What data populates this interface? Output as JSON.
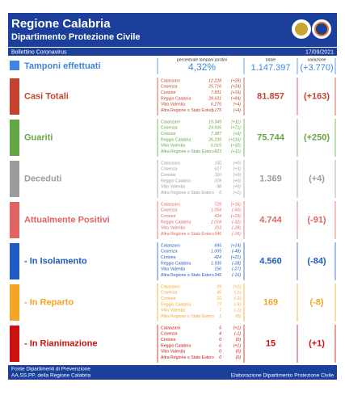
{
  "header": {
    "title": "Regione Calabria",
    "subtitle": "Dipartimento Protezione Civile",
    "bulletin": "Bollettino Coronavirus",
    "date": "17/09/2021"
  },
  "tamponi": {
    "label": "Tamponi effettuati",
    "pct_label": "percentuale tamponi positivi",
    "pct": "4,32%",
    "total_label": "totale",
    "total": "1.147.397",
    "var_label": "variazione",
    "variation": "(+3.770)",
    "color": "#3d85e0"
  },
  "sections": [
    {
      "label": "Casi Totali",
      "color": "#c5432e",
      "total": "81.857",
      "change": "(+163)",
      "rows": [
        [
          "Catanzaro",
          "12.228",
          "(+28)"
        ],
        [
          "Cosenza",
          "25.716",
          "(+24)"
        ],
        [
          "Crotone",
          "7.831",
          "(+19)"
        ],
        [
          "Reggio Calabria",
          "28.631",
          "(+84)"
        ],
        [
          "Vibo Valentia",
          "6.276",
          "(+4)"
        ],
        [
          "Altra Regione o Stato Estero",
          "1.175",
          "(+4)"
        ]
      ]
    },
    {
      "label": "Guariti",
      "color": "#62a744",
      "total": "75.744",
      "change": "(+250)",
      "rows": [
        [
          "Catanzaro",
          "10.349",
          "(+11)"
        ],
        [
          "Cosenza",
          "24.935",
          "(+71)"
        ],
        [
          "Crotone",
          "7.387",
          "(+9)"
        ],
        [
          "Reggio Calabria",
          "26.235",
          "(+116)"
        ],
        [
          "Vibo Valentia",
          "6.015",
          "(+32)"
        ],
        [
          "Altra Regione o Stato Estero",
          "823",
          "(+11)"
        ]
      ]
    },
    {
      "label": "Deceduti",
      "color": "#9c9c9c",
      "total": "1.369",
      "change": "(+4)",
      "rows": [
        [
          "Catanzaro",
          "150",
          "(+0)"
        ],
        [
          "Cosenza",
          "627",
          "(+3)"
        ],
        [
          "Crotone",
          "110",
          "(+0)"
        ],
        [
          "Reggio Calabria",
          "378",
          "(+0)"
        ],
        [
          "Vibo Valentia",
          "98",
          "(+0)"
        ],
        [
          "Altra Regione o Stato Estero",
          "6",
          "(+1)"
        ]
      ]
    },
    {
      "label": "Attualmente Positivi",
      "color": "#e06464",
      "total": "4.744",
      "change": "(-91)",
      "rows": [
        [
          "Catanzaro",
          "729",
          "(+16)"
        ],
        [
          "Cosenza",
          "1.054",
          "(-50)"
        ],
        [
          "Crotone",
          "434",
          "(+19)"
        ],
        [
          "Reggio Calabria",
          "2.018",
          "(-32)"
        ],
        [
          "Vibo Valentia",
          "163",
          "(-28)"
        ],
        [
          "Altra Regione o Stato Estero",
          "346",
          "(-16)"
        ]
      ]
    },
    {
      "label": "- In Isolamento",
      "color": "#1f5bc4",
      "total": "4.560",
      "change": "(-84)",
      "rows": [
        [
          "Catanzaro",
          "695",
          "(+14)"
        ],
        [
          "Cosenza",
          "1.005",
          "(-48)"
        ],
        [
          "Crotone",
          "424",
          "(+21)"
        ],
        [
          "Reggio Calabria",
          "1.935",
          "(-28)"
        ],
        [
          "Vibo Valentia",
          "156",
          "(-27)"
        ],
        [
          "Altra Regione o Stato Estero",
          "345",
          "(-16)"
        ]
      ]
    },
    {
      "label": "- In Reparto",
      "color": "#f4a524",
      "total": "169",
      "change": "(-8)",
      "rows": [
        [
          "Catanzaro",
          "29",
          "(+1)"
        ],
        [
          "Cosenza",
          "45",
          "(-1)"
        ],
        [
          "Crotone",
          "10",
          "(-2)"
        ],
        [
          "Reggio Calabria",
          "77",
          "(-5)"
        ],
        [
          "Vibo Valentia",
          "7",
          "(-1)"
        ],
        [
          "Altra Regione o Stato Estero",
          "1",
          "(0)"
        ]
      ]
    },
    {
      "label": "- In Rianimazione",
      "color": "#cc1111",
      "total": "15",
      "change": "(+1)",
      "rows": [
        [
          "Catanzaro",
          "5",
          "(+1)"
        ],
        [
          "Cosenza",
          "4",
          "(-1)"
        ],
        [
          "Crotone",
          "0",
          "(0)"
        ],
        [
          "Reggio Calabria",
          "6",
          "(+1)"
        ],
        [
          "Vibo Valentia",
          "0",
          "(0)"
        ],
        [
          "Altra Regione o Stato Estero",
          "0",
          "(0)"
        ]
      ]
    }
  ],
  "footer": {
    "line1": "Fonte Dipartimenti di Prevenzione",
    "line2": "AA.SS.PP.  della Regione Calabria",
    "right": "Elaborazione Dipartimento Protezione Civile"
  }
}
